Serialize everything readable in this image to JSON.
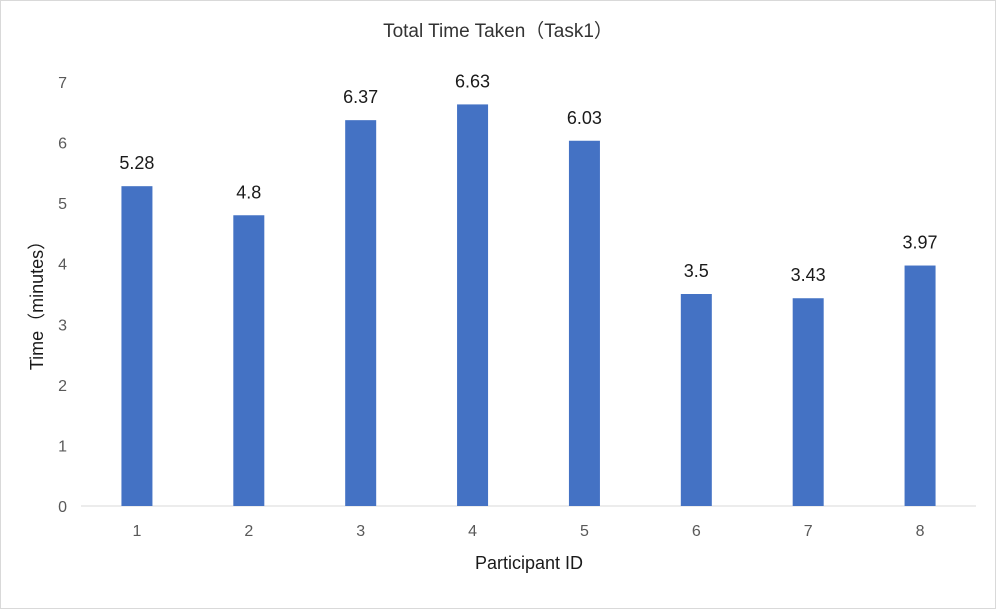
{
  "chart_data": {
    "type": "bar",
    "title": "Total Time Taken（Task1）",
    "xlabel": "Participant ID",
    "ylabel": "Time（minutes）",
    "categories": [
      "1",
      "2",
      "3",
      "4",
      "5",
      "6",
      "7",
      "8"
    ],
    "values": [
      5.28,
      4.8,
      6.37,
      6.63,
      6.03,
      3.5,
      3.43,
      3.97
    ],
    "data_labels": [
      "5.28",
      "4.8",
      "6.37",
      "6.63",
      "6.03",
      "3.5",
      "3.43",
      "3.97"
    ],
    "ylim": [
      0,
      7
    ],
    "yticks": [
      "0",
      "1",
      "2",
      "3",
      "4",
      "5",
      "6",
      "7"
    ],
    "grid": false,
    "legend": "none",
    "bar_color": "#4472c4"
  }
}
